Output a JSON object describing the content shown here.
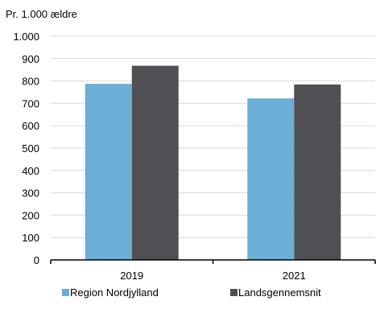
{
  "chart_data": {
    "type": "bar",
    "ylabel": "Pr. 1.000 ældre",
    "categories": [
      "2019",
      "2021"
    ],
    "series": [
      {
        "name": "Region Nordjylland",
        "values": [
          787,
          722
        ],
        "color": "#6baed6"
      },
      {
        "name": "Landsgennemsnit",
        "values": [
          868,
          784
        ],
        "color": "#505054"
      }
    ],
    "ylim": [
      0,
      1000
    ],
    "yticks": [
      0,
      100,
      200,
      300,
      400,
      500,
      600,
      700,
      800,
      900,
      1000
    ],
    "ytick_labels": [
      "0",
      "100",
      "200",
      "300",
      "400",
      "500",
      "600",
      "700",
      "800",
      "900",
      "1.000"
    ],
    "grid": true,
    "legend_position": "bottom",
    "gridline_color": "#d9d9d9",
    "axis_color": "#000000"
  }
}
